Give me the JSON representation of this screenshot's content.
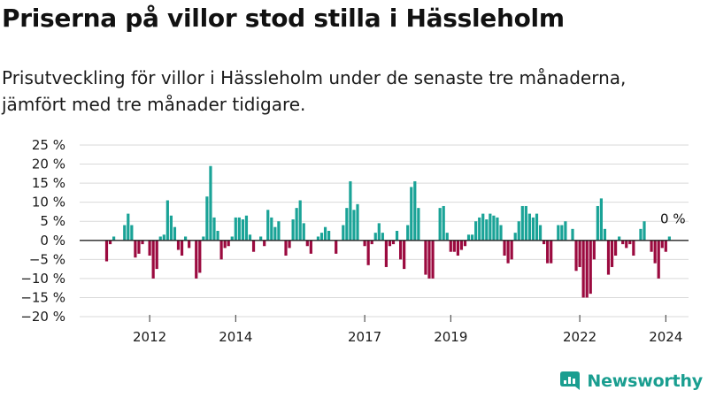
{
  "title": "Priserna på villor stod stilla i Hässleholm",
  "subtitle": "Prisutveckling för villor i Hässleholm under de senaste tre månaderna, jämfört med tre månader tidigare.",
  "brand": "Newsworthy",
  "colors": {
    "positive": "#1aa397",
    "negative": "#9b0a3f",
    "grid": "#d9d9d9",
    "zero_line": "#222222",
    "brand": "#1a9e90"
  },
  "chart_data": {
    "type": "bar",
    "ylim": [
      -20,
      25
    ],
    "y_ticks": [
      25,
      20,
      15,
      10,
      5,
      0,
      -5,
      -10,
      -15,
      -20
    ],
    "y_tick_labels": [
      "25 %",
      "20 %",
      "15 %",
      "10 %",
      "5 %",
      "0 %",
      "−5 %",
      "−10 %",
      "−15 %",
      "−20 %"
    ],
    "x_tick_labels": [
      "2012",
      "2014",
      "2017",
      "2019",
      "2022",
      "2024"
    ],
    "x_tick_indices": [
      12,
      36,
      72,
      96,
      132,
      156
    ],
    "annotation": "0 %",
    "grid": true,
    "unit": "%",
    "values": [
      -5.5,
      -1,
      1,
      0,
      0,
      4,
      7,
      4,
      -4.5,
      -3.5,
      -1,
      0,
      -4,
      -10,
      -7.5,
      1,
      1.5,
      10.5,
      6.5,
      3.5,
      -2.5,
      -4,
      1,
      -2,
      0,
      -10,
      -8.5,
      1,
      11.5,
      19.5,
      6,
      2.5,
      -5,
      -2,
      -1.5,
      1,
      6,
      6,
      5.5,
      6.5,
      1.5,
      -3,
      0,
      1,
      -1.5,
      8,
      6,
      3.5,
      5,
      0,
      -4,
      -2,
      5.5,
      8.5,
      10.5,
      4.5,
      -1.5,
      -3.5,
      0,
      1,
      2,
      3.5,
      2.5,
      0,
      -3.5,
      0,
      4,
      8.5,
      15.5,
      8,
      9.5,
      0,
      -1.5,
      -6.5,
      -1,
      2,
      4.5,
      2,
      -7,
      -1.5,
      -1,
      2.5,
      -5,
      -7.5,
      4,
      14,
      15.5,
      8.5,
      0,
      -9,
      -10,
      -10,
      0,
      8.5,
      9,
      2,
      -3,
      -3,
      -4,
      -2.5,
      -1.5,
      1.5,
      1.5,
      5,
      6,
      7,
      5.5,
      7,
      6.5,
      6,
      4,
      -4,
      -6,
      -5,
      2,
      5,
      9,
      9,
      7,
      6,
      7,
      4,
      -1,
      -6,
      -6,
      0,
      4,
      4,
      5,
      0,
      3,
      -8,
      -7,
      -15,
      -15,
      -14,
      -5,
      9,
      11,
      3,
      -9,
      -7,
      -4,
      1,
      -1,
      -2,
      -1,
      -4,
      0,
      3,
      5,
      0,
      -3,
      -6,
      -10,
      -2,
      -3,
      1
    ]
  }
}
